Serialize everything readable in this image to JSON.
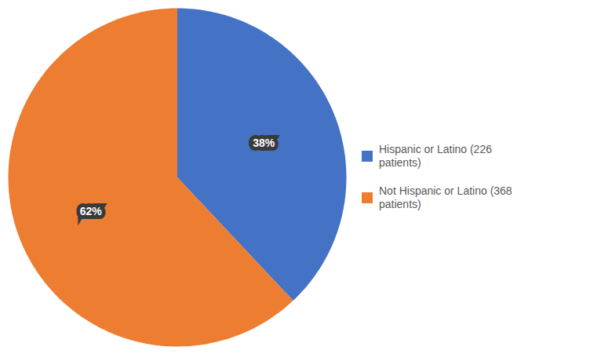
{
  "chart_data": {
    "type": "pie",
    "categories": [
      "Hispanic or Latino (226\npatients)",
      "Not Hispanic or Latino (368\npatients)"
    ],
    "values": [
      38,
      62
    ],
    "value_labels": [
      "38%",
      "62%"
    ],
    "colors": [
      "#4472C4",
      "#ED7D31"
    ],
    "data_labels": true,
    "legend": "right"
  }
}
